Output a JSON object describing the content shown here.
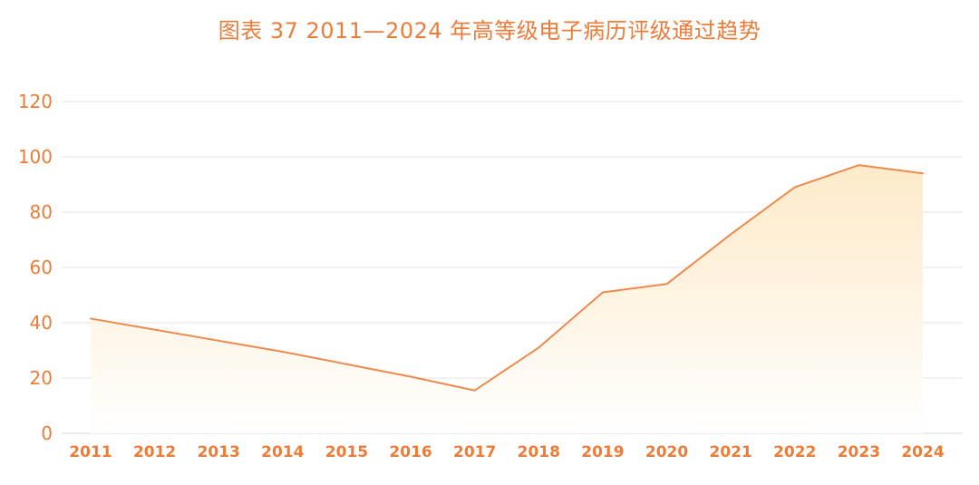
{
  "chart_data": {
    "type": "area",
    "title": "图表  37 2011—2024 年高等级电子病历评级通过趋势",
    "xlabel": "",
    "ylabel": "",
    "categories": [
      "2011",
      "2012",
      "2013",
      "2014",
      "2015",
      "2016",
      "2017",
      "2018",
      "2019",
      "2020",
      "2021",
      "2022",
      "2023",
      "2024"
    ],
    "values": [
      41.5,
      37.5,
      33.5,
      29.5,
      25,
      20.5,
      15.5,
      31,
      51,
      54,
      72,
      89,
      97,
      94
    ],
    "ylim": [
      0,
      120
    ],
    "yticks": [
      "0",
      "20",
      "40",
      "60",
      "80",
      "100",
      "120"
    ],
    "grid": true,
    "legend": "none",
    "colors": {
      "line": "#ec8a4d",
      "fill_top": "#fde8c4",
      "fill_bottom": "#ffffff",
      "text": "#ec7c3a",
      "grid": "#e3e3e3",
      "axis": "#d9d9d9"
    }
  }
}
